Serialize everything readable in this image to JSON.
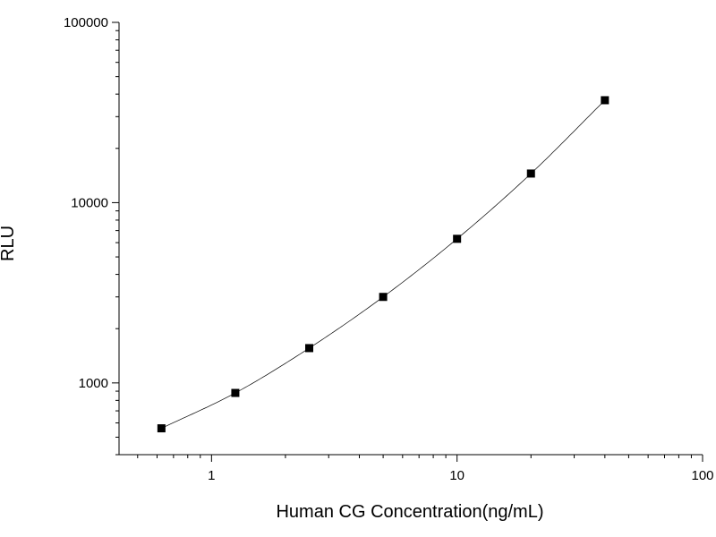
{
  "chart_data": {
    "type": "scatter",
    "title": "",
    "xlabel": "Human CG Concentration(ng/mL)",
    "ylabel": "RLU",
    "x_scale": "log",
    "y_scale": "log",
    "xlim": [
      0.42,
      100
    ],
    "ylim": [
      400,
      100000
    ],
    "x_tick_labels": [
      "1",
      "10",
      "100"
    ],
    "y_tick_labels": [
      "1000",
      "10000",
      "100000"
    ],
    "grid": false,
    "legend": "none",
    "marker": "square",
    "fit_line": true,
    "colors": {
      "marker": "#000000",
      "line": "#000000"
    },
    "series": [
      {
        "x": [
          0.625,
          1.25,
          2.5,
          5,
          10,
          20,
          40
        ],
        "y": [
          560,
          880,
          1560,
          3000,
          6300,
          14500,
          37000
        ]
      }
    ]
  }
}
